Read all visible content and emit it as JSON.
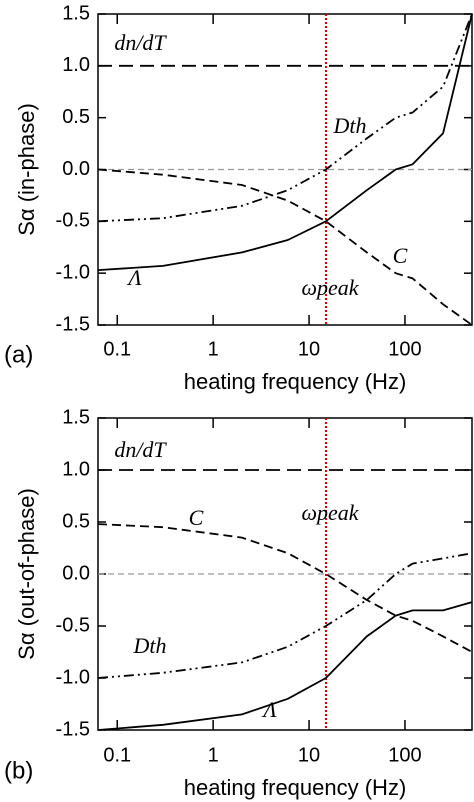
{
  "chart_data": [
    {
      "type": "line",
      "panel_label": "(a)",
      "ylabel": "Sα  (in-phase)",
      "xlabel": "heating frequency  (Hz)",
      "log_x": true,
      "xlim": [
        0.063,
        500
      ],
      "xticks": [
        0.1,
        1,
        10,
        100
      ],
      "ylim": [
        -1.5,
        1.5
      ],
      "yticks": [
        1.5,
        {
          "value": 1.0,
          "label": "1.0"
        },
        0.5,
        {
          "value": 0.0,
          "label": "0.0"
        },
        -0.5,
        {
          "value": -1.0,
          "label": "-1.0"
        },
        -1.5
      ],
      "zero_line": 0,
      "peak": {
        "label": "ωpeak",
        "x": 15,
        "color": "#cc0000"
      },
      "hline": {
        "label": "dn/dT",
        "y": 1.0
      },
      "x": [
        0.063,
        0.3,
        2,
        6,
        15,
        40,
        80,
        120,
        250,
        500
      ],
      "series": [
        {
          "name": "Λ",
          "color": "#000000",
          "style": "solid",
          "values": [
            -0.97,
            -0.93,
            -0.8,
            -0.68,
            -0.5,
            -0.2,
            0,
            0.05,
            0.35,
            1.5
          ]
        },
        {
          "name": "C",
          "color": "#000000",
          "style": "dashed",
          "values": [
            0,
            -0.05,
            -0.15,
            -0.3,
            -0.5,
            -0.8,
            -1.0,
            -1.05,
            -1.3,
            -1.5
          ]
        },
        {
          "name": "Dth",
          "color": "#000000",
          "style": "dashdot",
          "values": [
            -0.5,
            -0.47,
            -0.35,
            -0.2,
            0,
            0.3,
            0.5,
            0.55,
            0.8,
            1.5
          ]
        }
      ]
    },
    {
      "type": "line",
      "panel_label": "(b)",
      "ylabel": "Sα  (out-of-phase)",
      "xlabel": "heating frequency  (Hz)",
      "log_x": true,
      "xlim": [
        0.063,
        500
      ],
      "xticks": [
        0.1,
        1,
        10,
        100
      ],
      "ylim": [
        -1.5,
        1.5
      ],
      "yticks": [
        1.5,
        {
          "value": 1.0,
          "label": "1.0"
        },
        0.5,
        {
          "value": 0.0,
          "label": "0.0"
        },
        -0.5,
        {
          "value": -1.0,
          "label": "-1.0"
        },
        -1.5
      ],
      "zero_line": 0,
      "peak": {
        "label": "ωpeak",
        "x": 15,
        "color": "#cc0000"
      },
      "hline": {
        "label": "dn/dT",
        "y": 1.0
      },
      "x": [
        0.063,
        0.3,
        2,
        6,
        15,
        40,
        80,
        120,
        250,
        500
      ],
      "series": [
        {
          "name": "Λ",
          "color": "#000000",
          "style": "solid",
          "values": [
            -1.5,
            -1.45,
            -1.35,
            -1.2,
            -1.0,
            -0.6,
            -0.4,
            -0.35,
            -0.35,
            -0.27
          ]
        },
        {
          "name": "C",
          "color": "#000000",
          "style": "dashed",
          "values": [
            0.48,
            0.45,
            0.35,
            0.2,
            0,
            -0.25,
            -0.4,
            -0.45,
            -0.6,
            -0.75
          ]
        },
        {
          "name": "Dth",
          "color": "#000000",
          "style": "dashdot",
          "values": [
            -1.0,
            -0.95,
            -0.85,
            -0.7,
            -0.5,
            -0.25,
            0,
            0.1,
            0.15,
            0.2
          ]
        }
      ]
    }
  ]
}
